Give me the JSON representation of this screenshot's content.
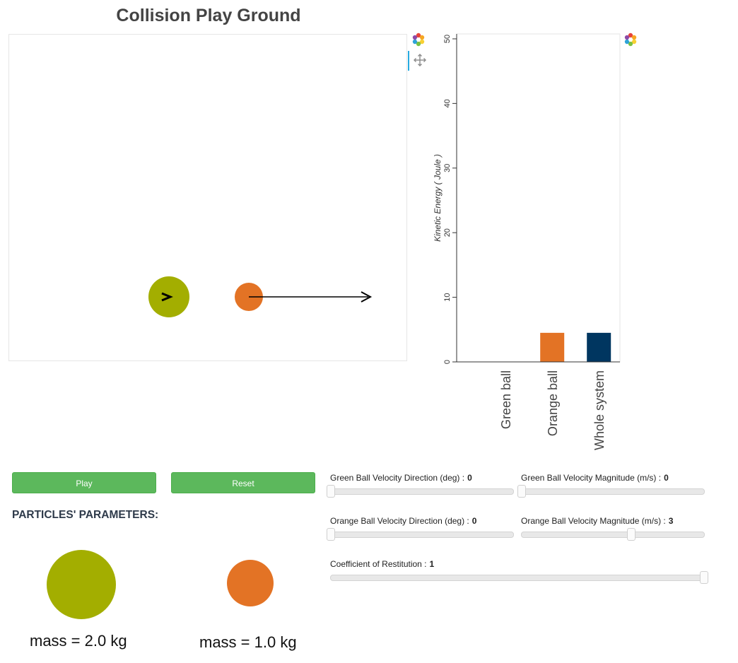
{
  "title": "Collision Play Ground",
  "playground": {
    "green_ball_color": "#a3ae00",
    "orange_ball_color": "#e37325",
    "arrow_color": "#000000"
  },
  "energy_chart": {
    "ylabel": "Kinetic Energy ( Joule )",
    "chart_data": {
      "type": "bar",
      "categories": [
        "Green ball",
        "Orange ball",
        "Whole system"
      ],
      "values": [
        0,
        4.5,
        4.5
      ],
      "colors": [
        "#a3ae00",
        "#e37325",
        "#003660"
      ],
      "ylabel": "Kinetic Energy ( Joule )",
      "ylim": [
        0,
        50
      ],
      "yticks": [
        "0",
        "10",
        "20",
        "30",
        "40",
        "50"
      ]
    }
  },
  "controls": {
    "play_label": "Play",
    "reset_label": "Reset"
  },
  "params": {
    "section_title": "PARTICLES' PARAMETERS:",
    "green_mass_label": "mass = 2.0 kg",
    "orange_mass_label": "mass = 1.0 kg"
  },
  "sliders": {
    "green_dir": {
      "label": "Green Ball Velocity Direction (deg) :",
      "value": "0",
      "level": 0
    },
    "green_mag": {
      "label": "Green Ball Velocity Magnitude (m/s) :",
      "value": "0",
      "level": 0
    },
    "orange_dir": {
      "label": "Orange Ball Velocity Direction (deg) :",
      "value": "0",
      "level": 0
    },
    "orange_mag": {
      "label": "Orange Ball Velocity Magnitude (m/s) :",
      "value": "3",
      "level": 0.6
    },
    "restitution": {
      "label": "Coefficient of Restitution :",
      "value": "1",
      "level": 1
    }
  },
  "icons": [
    "bokeh-logo-icon",
    "pan-tool-icon"
  ]
}
